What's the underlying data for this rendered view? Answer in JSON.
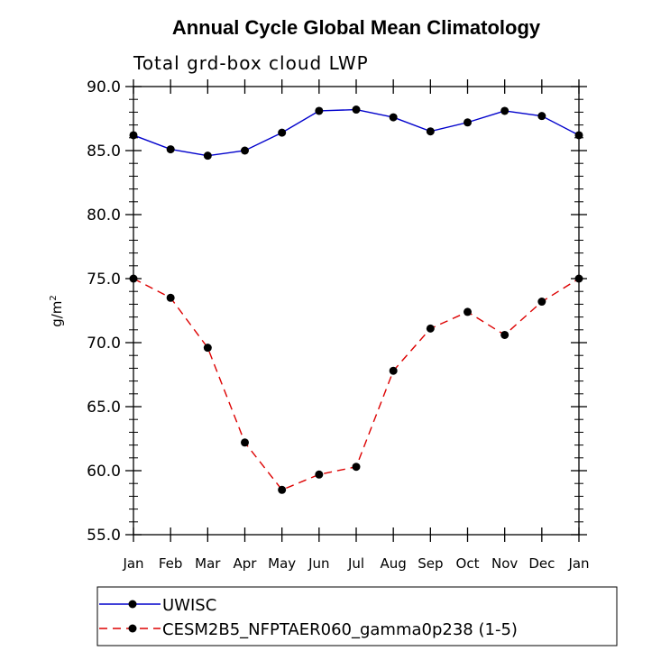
{
  "chart_data": {
    "type": "line",
    "title": "Annual Cycle Global Mean Climatology",
    "subtitle": "Total grd-box cloud LWP",
    "ylabel": "g/m",
    "ylabel_sup": "2",
    "xlabel": "",
    "ylim": [
      55.0,
      90.0
    ],
    "yticks": [
      "55.0",
      "60.0",
      "65.0",
      "70.0",
      "75.0",
      "80.0",
      "85.0",
      "90.0"
    ],
    "categories": [
      "Jan",
      "Feb",
      "Mar",
      "Apr",
      "May",
      "Jun",
      "Jul",
      "Aug",
      "Sep",
      "Oct",
      "Nov",
      "Dec",
      "Jan"
    ],
    "series": [
      {
        "name": "UWISC",
        "color": "#0000cc",
        "dash": "solid",
        "values": [
          86.2,
          85.1,
          84.6,
          85.0,
          86.4,
          88.1,
          88.2,
          87.6,
          86.5,
          87.2,
          88.1,
          87.7,
          86.2
        ]
      },
      {
        "name": "CESM2B5_NFPTAER060_gamma0p238 (1-5)",
        "color": "#dd0000",
        "dash": "dashed",
        "values": [
          75.0,
          73.5,
          69.6,
          62.2,
          58.5,
          59.7,
          60.3,
          67.8,
          71.1,
          72.4,
          70.6,
          73.2,
          75.0
        ]
      }
    ],
    "grid": false,
    "legend_position": "bottom"
  }
}
